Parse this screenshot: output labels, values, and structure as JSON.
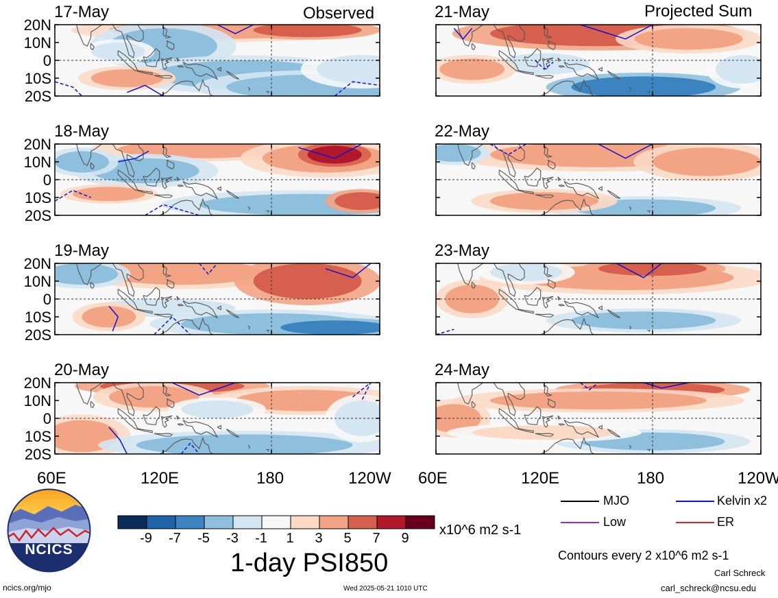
{
  "chart_data": {
    "type": "heatmap",
    "title": "1-day PSI850",
    "colorbar": {
      "units": "x10^6 m2 s-1",
      "tick_labels": [
        "-9",
        "-7",
        "-5",
        "-3",
        "-1",
        "1",
        "3",
        "5",
        "7",
        "9"
      ],
      "bins": [
        "< -9",
        "-9 to -7",
        "-7 to -5",
        "-5 to -3",
        "-3 to -1",
        "-1 to 1",
        "1 to 3",
        "3 to 5",
        "5 to 7",
        "7 to 9",
        "> 9"
      ],
      "colors": [
        "#0b2c57",
        "#1f63a8",
        "#3b84c0",
        "#8ec0de",
        "#d3e6f2",
        "#f7f7f7",
        "#fbd9c5",
        "#f2a485",
        "#d6604d",
        "#b2182b",
        "#67001f"
      ]
    },
    "lat_labels": [
      "20N",
      "10N",
      "0",
      "10S",
      "20S"
    ],
    "lon_labels": [
      "60E",
      "120E",
      "180",
      "120W"
    ],
    "lat_range": [
      -20,
      20
    ],
    "lon_range": [
      60,
      240
    ],
    "columns": [
      {
        "label": "Observed",
        "panels": [
          "17-May",
          "18-May",
          "19-May",
          "20-May"
        ]
      },
      {
        "label": "Projected Sum",
        "panels": [
          "21-May",
          "22-May",
          "23-May",
          "24-May"
        ]
      }
    ],
    "contour_legend": [
      {
        "label": "MJO",
        "color": "#000000"
      },
      {
        "label": "Kelvin x2",
        "color": "#1010d0"
      },
      {
        "label": "Low",
        "color": "#8a2be2"
      },
      {
        "label": "ER",
        "color": "#e02020"
      }
    ],
    "contour_note": "Contours every 2 x10^6 m2 s-1"
  },
  "logo": {
    "text": "NCICS"
  },
  "footer": {
    "left": "ncics.org/mjo",
    "center": "Wed 2025-05-21 1010 UTC",
    "author": "Carl Schreck",
    "email": "carl_schreck@ncsu.edu"
  }
}
